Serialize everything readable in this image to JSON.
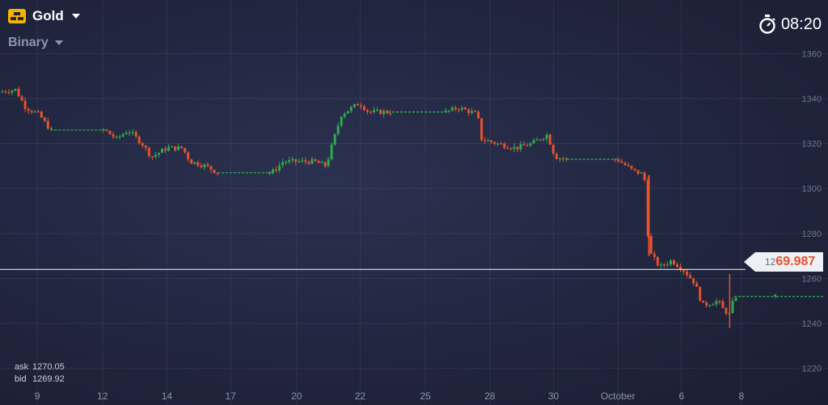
{
  "header": {
    "asset_name": "Gold",
    "asset_icon": "gold-bars-icon",
    "mode_name": "Binary",
    "timer_icon": "stopwatch-icon",
    "timer_text": "08:20"
  },
  "quotes": {
    "ask_label": "ask",
    "ask_value": "1270.05",
    "bid_label": "bid",
    "bid_value": "1269.92"
  },
  "current_price": {
    "prefix": "12",
    "emphasis": "69.987",
    "value": 1269.987
  },
  "colors": {
    "up": "#2fa84f",
    "down": "#e5522d",
    "gold": "#f5b301",
    "price_line": "#ffffff"
  },
  "chart_data": {
    "type": "candlestick",
    "y_ticks": [
      "1360",
      "1340",
      "1320",
      "1300",
      "1280",
      "1260",
      "1240",
      "1220"
    ],
    "y_tick_values": [
      1360,
      1340,
      1320,
      1300,
      1280,
      1260,
      1240,
      1220
    ],
    "x_ticks": [
      "9",
      "12",
      "14",
      "17",
      "20",
      "22",
      "25",
      "28",
      "30",
      "October",
      "6",
      "8"
    ],
    "ylim": [
      1212,
      1368
    ],
    "x_domain": [
      0,
      100
    ],
    "x_tick_positions": [
      4.8,
      13.2,
      21.5,
      29.7,
      38.2,
      46.4,
      54.8,
      63.1,
      71.3,
      79.6,
      87.8,
      95.5
    ],
    "grid": true,
    "price_line": 1264,
    "key_points": [
      {
        "x": 0.0,
        "y": 1343
      },
      {
        "x": 2.0,
        "y": 1344
      },
      {
        "x": 3.3,
        "y": 1336
      },
      {
        "x": 5.0,
        "y": 1333
      },
      {
        "x": 6.5,
        "y": 1326
      },
      {
        "x": 13.5,
        "y": 1326
      },
      {
        "x": 15.0,
        "y": 1322
      },
      {
        "x": 16.5,
        "y": 1326
      },
      {
        "x": 18.3,
        "y": 1320
      },
      {
        "x": 19.5,
        "y": 1314
      },
      {
        "x": 21.5,
        "y": 1318
      },
      {
        "x": 23.5,
        "y": 1318
      },
      {
        "x": 24.5,
        "y": 1312
      },
      {
        "x": 26.5,
        "y": 1310
      },
      {
        "x": 28.0,
        "y": 1307
      },
      {
        "x": 35.0,
        "y": 1307
      },
      {
        "x": 36.5,
        "y": 1312
      },
      {
        "x": 38.5,
        "y": 1312
      },
      {
        "x": 40.5,
        "y": 1312
      },
      {
        "x": 42.0,
        "y": 1310
      },
      {
        "x": 43.0,
        "y": 1322
      },
      {
        "x": 44.0,
        "y": 1333
      },
      {
        "x": 46.3,
        "y": 1338
      },
      {
        "x": 47.5,
        "y": 1334
      },
      {
        "x": 50.0,
        "y": 1334
      },
      {
        "x": 57.5,
        "y": 1334
      },
      {
        "x": 59.0,
        "y": 1336
      },
      {
        "x": 61.5,
        "y": 1333
      },
      {
        "x": 62.0,
        "y": 1322
      },
      {
        "x": 64.0,
        "y": 1320
      },
      {
        "x": 66.5,
        "y": 1318
      },
      {
        "x": 68.5,
        "y": 1320
      },
      {
        "x": 70.5,
        "y": 1324
      },
      {
        "x": 71.5,
        "y": 1314
      },
      {
        "x": 73.0,
        "y": 1313
      },
      {
        "x": 79.5,
        "y": 1313
      },
      {
        "x": 81.5,
        "y": 1308
      },
      {
        "x": 83.0,
        "y": 1306
      },
      {
        "x": 83.6,
        "y": 1272
      },
      {
        "x": 85.0,
        "y": 1265
      },
      {
        "x": 86.5,
        "y": 1268
      },
      {
        "x": 88.0,
        "y": 1264
      },
      {
        "x": 89.5,
        "y": 1258
      },
      {
        "x": 90.5,
        "y": 1248
      },
      {
        "x": 92.5,
        "y": 1250
      },
      {
        "x": 93.2,
        "y": 1246
      },
      {
        "x": 94.0,
        "y": 1244
      },
      {
        "x": 94.6,
        "y": 1252
      },
      {
        "x": 100.0,
        "y": 1252
      }
    ],
    "flat_segments": [
      [
        6.5,
        13.5
      ],
      [
        28.0,
        35.0
      ],
      [
        50.0,
        57.5
      ],
      [
        73.0,
        79.5
      ],
      [
        94.6,
        100.0
      ]
    ]
  }
}
